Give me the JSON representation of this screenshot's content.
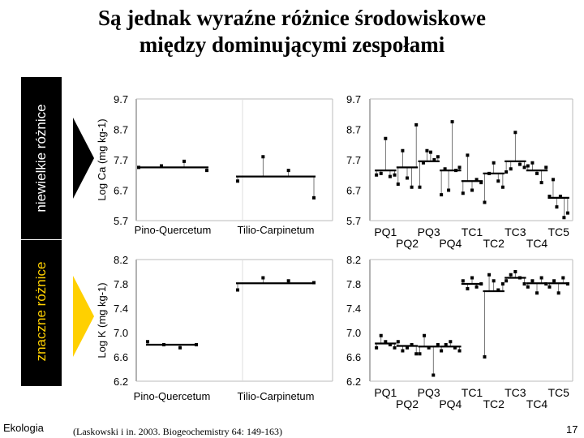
{
  "title_line1": "Są jednak wyraźne różnice środowiskowe",
  "title_line2": "między dominującymi zespołami",
  "side_label_top": "niewielkie różnice",
  "side_label_bottom": "znaczne różnice",
  "footer_left": "Ekologia",
  "footer_citation": "(Laskowski i in. 2003. Biogeochemistry 64: 149-163)",
  "footer_page": "17",
  "chart_data": [
    {
      "type": "scatter",
      "ylabel": "Log Ca (mg kg-1)",
      "ylim": [
        5.7,
        9.7
      ],
      "yticks": [
        "9.7",
        "8.7",
        "7.7",
        "6.7",
        "5.7"
      ],
      "categories": [
        "Pino-Quercetum",
        "Tilio-Carpinetum"
      ],
      "means": [
        7.45,
        7.15
      ],
      "points": [
        [
          7.45,
          7.5,
          7.65,
          7.35
        ],
        [
          7.0,
          7.8,
          7.35,
          6.45
        ]
      ]
    },
    {
      "type": "scatter",
      "ylim": [
        5.7,
        9.7
      ],
      "yticks": [
        "9.7",
        "8.7",
        "7.7",
        "6.7",
        "5.7"
      ],
      "categories": [
        "PQ1",
        "PQ2",
        "PQ3",
        "PQ4",
        "TC1",
        "TC2",
        "TC3",
        "TC4",
        "TC5"
      ],
      "means": [
        7.35,
        7.45,
        7.65,
        7.35,
        7.0,
        7.25,
        7.65,
        7.35,
        6.45
      ],
      "points": [
        [
          7.2,
          7.25,
          8.4,
          7.15,
          7.2
        ],
        [
          6.9,
          8.0,
          7.1,
          6.8,
          8.85
        ],
        [
          6.8,
          7.6,
          8.0,
          7.95,
          7.7,
          7.8
        ],
        [
          6.55,
          7.4,
          6.7,
          8.95,
          7.35,
          7.45
        ],
        [
          6.6,
          7.85,
          6.7,
          7.05,
          6.95
        ],
        [
          6.3,
          7.25,
          7.6,
          7.0,
          6.8
        ],
        [
          7.3,
          7.4,
          8.6,
          7.55,
          7.45
        ],
        [
          7.5,
          7.6,
          7.25,
          6.95,
          7.45
        ],
        [
          6.5,
          7.05,
          6.15,
          6.5,
          5.8,
          5.95
        ]
      ]
    },
    {
      "type": "scatter",
      "ylabel": "Log K (mg kg-1)",
      "ylim": [
        6.2,
        8.2
      ],
      "yticks": [
        "8.2",
        "7.8",
        "7.4",
        "7.0",
        "6.6",
        "6.2"
      ],
      "categories": [
        "Pino-Quercetum",
        "Tilio-Carpinetum"
      ],
      "means": [
        6.8,
        7.81
      ],
      "points": [
        [
          6.85,
          6.8,
          6.75,
          6.8
        ],
        [
          7.7,
          7.9,
          7.85,
          7.82
        ]
      ]
    },
    {
      "type": "scatter",
      "ylim": [
        6.2,
        8.2
      ],
      "yticks": [
        "8.2",
        "7.8",
        "7.4",
        "7.0",
        "6.6",
        "6.2"
      ],
      "categories": [
        "PQ1",
        "PQ2",
        "PQ3",
        "PQ4",
        "TC1",
        "TC2",
        "TC3",
        "TC4",
        "TC5"
      ],
      "means": [
        6.82,
        6.78,
        6.77,
        6.77,
        7.8,
        7.68,
        7.9,
        7.81,
        7.81
      ],
      "points": [
        [
          6.75,
          6.95,
          6.85,
          6.8,
          6.75
        ],
        [
          6.85,
          6.7,
          6.75,
          6.8,
          6.65
        ],
        [
          6.65,
          6.95,
          6.75,
          6.3,
          6.8
        ],
        [
          6.7,
          6.8,
          6.85,
          6.75,
          6.7
        ],
        [
          7.85,
          7.72,
          7.9,
          7.75,
          7.8
        ],
        [
          6.6,
          7.95,
          7.85,
          7.7,
          7.8
        ],
        [
          7.85,
          7.95,
          8.0,
          7.9,
          7.8
        ],
        [
          7.75,
          7.85,
          7.65,
          7.9,
          7.8
        ],
        [
          7.75,
          7.85,
          7.65,
          7.9,
          7.8
        ]
      ]
    }
  ]
}
